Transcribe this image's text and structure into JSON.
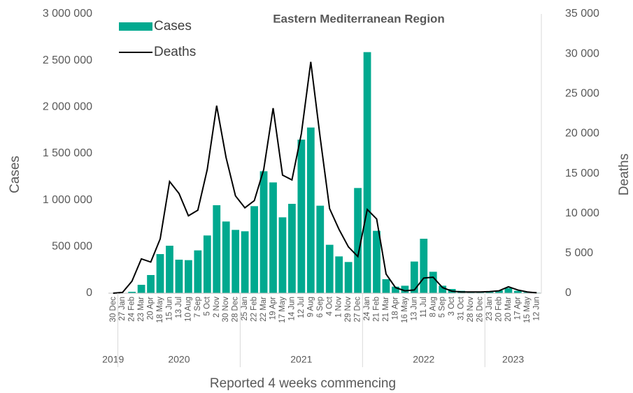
{
  "chart_data": {
    "type": "bar-line",
    "title": "Eastern Mediterranean Region",
    "x_label": "Reported 4 weeks commencing",
    "y_label": "Cases",
    "y2_label": "Deaths",
    "categories": [
      "30 Dec",
      "27 Jan",
      "24 Feb",
      "23 Mar",
      "20 Apr",
      "18 May",
      "15 Jun",
      "13 Jul",
      "10 Aug",
      "7 Sep",
      "5 Oct",
      "2 Nov",
      "30 Nov",
      "28 Dec",
      "25 Jan",
      "22 Feb",
      "22 Mar",
      "19 Apr",
      "17 May",
      "14 Jun",
      "12 Jul",
      "9 Aug",
      "6 Sep",
      "4 Oct",
      "1 Nov",
      "29 Nov",
      "27 Dec",
      "24 Jan",
      "21 Feb",
      "21 Mar",
      "18 Apr",
      "16 May",
      "13 Jun",
      "11 Jul",
      "8 Aug",
      "5 Sep",
      "3 Oct",
      "31 Oct",
      "28 Nov",
      "26 Dec",
      "23 Jan",
      "20 Feb",
      "20 Mar",
      "17 Apr",
      "15 May",
      "12 Jun"
    ],
    "groups": [
      {
        "label": "2019",
        "count": 1
      },
      {
        "label": "2020",
        "count": 13
      },
      {
        "label": "2021",
        "count": 13
      },
      {
        "label": "2022",
        "count": 13
      },
      {
        "label": "2023",
        "count": 6
      }
    ],
    "series": [
      {
        "name": "Cases",
        "type": "bar",
        "color": "#00a98f",
        "axis": "y",
        "values": [
          0,
          2000,
          15000,
          90000,
          195000,
          420000,
          510000,
          360000,
          355000,
          460000,
          620000,
          945000,
          770000,
          680000,
          665000,
          935000,
          1310000,
          1190000,
          815000,
          960000,
          1650000,
          1780000,
          940000,
          520000,
          395000,
          335000,
          1130000,
          2590000,
          670000,
          150000,
          70000,
          80000,
          340000,
          585000,
          230000,
          80000,
          45000,
          25000,
          15000,
          10000,
          15000,
          30000,
          55000,
          25000,
          10000,
          5000
        ]
      },
      {
        "name": "Deaths",
        "type": "line",
        "color": "#000000",
        "axis": "y2",
        "values": [
          0,
          100,
          1500,
          4300,
          3900,
          6800,
          14000,
          12500,
          9700,
          10400,
          15500,
          23500,
          17000,
          12200,
          10700,
          11600,
          15500,
          23200,
          14800,
          14200,
          20000,
          29000,
          19500,
          10600,
          8000,
          5800,
          4600,
          10500,
          9300,
          2400,
          700,
          300,
          400,
          1900,
          2000,
          700,
          250,
          150,
          150,
          150,
          200,
          300,
          800,
          400,
          150,
          50
        ]
      }
    ],
    "ylim": [
      0,
      3000000
    ],
    "yticks": [
      0,
      {
        "value": 500000,
        "label": "500 000"
      },
      {
        "value": 1000000,
        "label": "1 000 000"
      },
      {
        "value": 1500000,
        "label": "1 500 000"
      },
      {
        "value": 2000000,
        "label": "2 000 000"
      },
      {
        "value": 2500000,
        "label": "2 500 000"
      },
      {
        "value": 3000000,
        "label": "3 000 000"
      }
    ],
    "y2lim": [
      0,
      35000
    ],
    "y2ticks": [
      0,
      {
        "value": 5000,
        "label": "5 000"
      },
      {
        "value": 10000,
        "label": "10 000"
      },
      {
        "value": 15000,
        "label": "15 000"
      },
      {
        "value": 20000,
        "label": "20 000"
      },
      {
        "value": 25000,
        "label": "25 000"
      },
      {
        "value": 30000,
        "label": "30 000"
      },
      {
        "value": 35000,
        "label": "35 000"
      }
    ],
    "legend": "top-left"
  }
}
